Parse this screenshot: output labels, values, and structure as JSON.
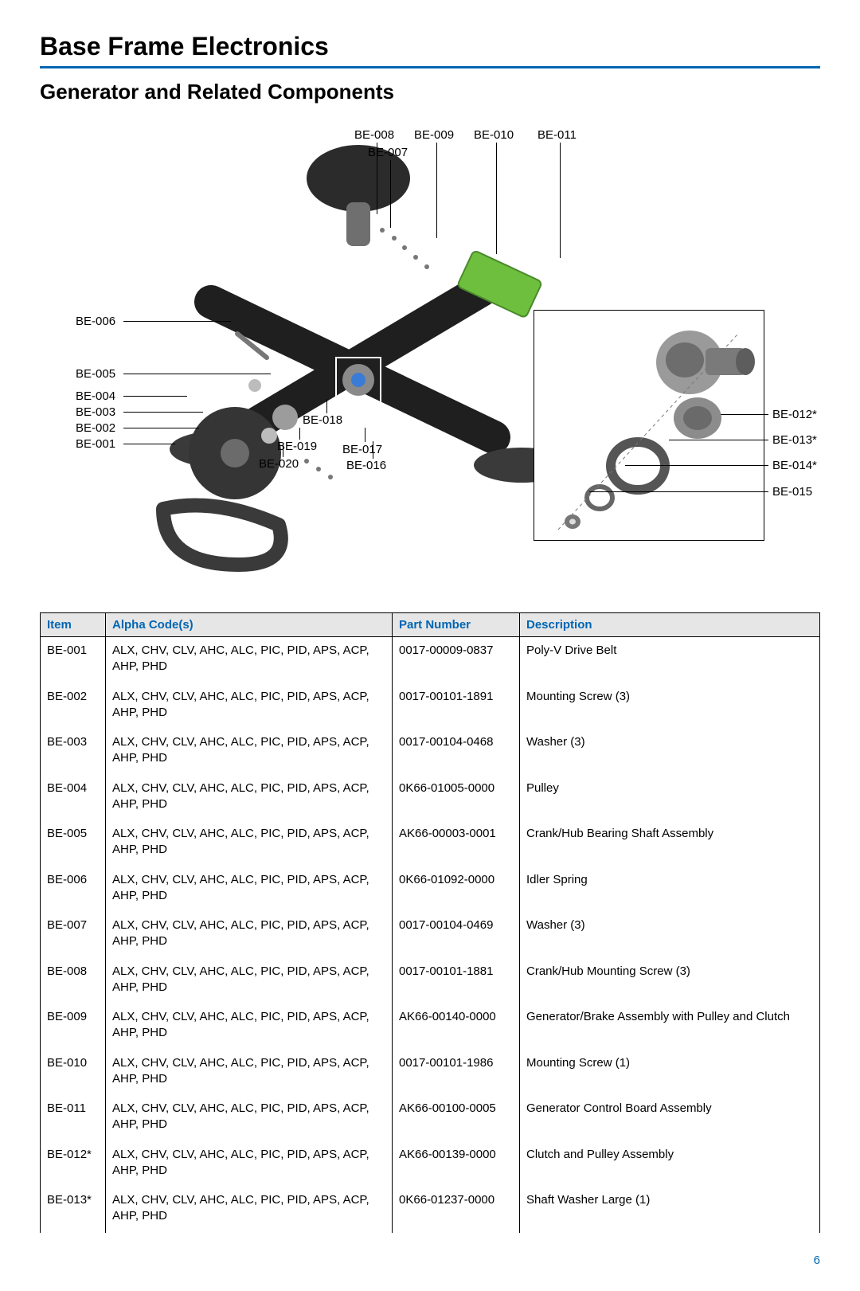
{
  "title": "Base Frame Electronics",
  "subtitle": "Generator and Related Components",
  "page_number": "6",
  "accent_color": "#0066b3",
  "header_bg": "#e6e6e6",
  "callouts": {
    "top": {
      "c7": "BE-007",
      "c8": "BE-008",
      "c9": "BE-009",
      "c10": "BE-010",
      "c11": "BE-011"
    },
    "left": {
      "c6": "BE-006",
      "c5": "BE-005",
      "c4": "BE-004",
      "c3": "BE-003",
      "c2": "BE-002",
      "c1": "BE-001"
    },
    "bottom": {
      "c20": "BE-020",
      "c19": "BE-019",
      "c18": "BE-018",
      "c17": "BE-017",
      "c16": "BE-016"
    },
    "right": {
      "c12": "BE-012*",
      "c13": "BE-013*",
      "c14": "BE-014*",
      "c15": "BE-015"
    }
  },
  "table": {
    "headers": {
      "item": "Item",
      "alpha": "Alpha Code(s)",
      "part": "Part Number",
      "desc": "Description"
    },
    "rows": [
      {
        "item": "BE-001",
        "alpha": "ALX, CHV, CLV, AHC, ALC, PIC, PID, APS, ACP, AHP, PHD",
        "part": "0017-00009-0837",
        "desc": "Poly-V Drive Belt"
      },
      {
        "item": "BE-002",
        "alpha": "ALX, CHV, CLV, AHC, ALC, PIC, PID, APS, ACP, AHP, PHD",
        "part": "0017-00101-1891",
        "desc": "Mounting Screw (3)"
      },
      {
        "item": "BE-003",
        "alpha": "ALX, CHV, CLV, AHC, ALC, PIC, PID, APS, ACP, AHP, PHD",
        "part": "0017-00104-0468",
        "desc": "Washer (3)"
      },
      {
        "item": "BE-004",
        "alpha": "ALX, CHV, CLV, AHC, ALC, PIC, PID, APS, ACP, AHP, PHD",
        "part": "0K66-01005-0000",
        "desc": "Pulley"
      },
      {
        "item": "BE-005",
        "alpha": "ALX, CHV, CLV, AHC, ALC, PIC, PID, APS, ACP, AHP, PHD",
        "part": "AK66-00003-0001",
        "desc": "Crank/Hub Bearing Shaft Assembly"
      },
      {
        "item": "BE-006",
        "alpha": "ALX, CHV, CLV, AHC, ALC, PIC, PID, APS, ACP, AHP, PHD",
        "part": "0K66-01092-0000",
        "desc": "Idler Spring"
      },
      {
        "item": "BE-007",
        "alpha": "ALX, CHV, CLV, AHC, ALC, PIC, PID, APS, ACP, AHP, PHD",
        "part": "0017-00104-0469",
        "desc": "Washer (3)"
      },
      {
        "item": "BE-008",
        "alpha": "ALX, CHV, CLV, AHC, ALC, PIC, PID, APS, ACP, AHP, PHD",
        "part": "0017-00101-1881",
        "desc": "Crank/Hub Mounting Screw (3)"
      },
      {
        "item": "BE-009",
        "alpha": "ALX, CHV, CLV, AHC, ALC, PIC, PID, APS, ACP, AHP, PHD",
        "part": "AK66-00140-0000",
        "desc": "Generator/Brake Assembly with Pulley and Clutch"
      },
      {
        "item": "BE-010",
        "alpha": "ALX, CHV, CLV, AHC, ALC, PIC, PID, APS, ACP, AHP, PHD",
        "part": "0017-00101-1986",
        "desc": "Mounting Screw (1)"
      },
      {
        "item": "BE-011",
        "alpha": "ALX, CHV, CLV, AHC, ALC, PIC, PID, APS, ACP, AHP, PHD",
        "part": "AK66-00100-0005",
        "desc": "Generator Control Board Assembly"
      },
      {
        "item": "BE-012*",
        "alpha": "ALX, CHV, CLV, AHC, ALC, PIC, PID, APS, ACP, AHP, PHD",
        "part": "AK66-00139-0000",
        "desc": "Clutch and Pulley Assembly"
      },
      {
        "item": "BE-013*",
        "alpha": "ALX, CHV, CLV, AHC, ALC, PIC, PID, APS, ACP, AHP, PHD",
        "part": "0K66-01237-0000",
        "desc": "Shaft Washer Large (1)"
      }
    ]
  }
}
